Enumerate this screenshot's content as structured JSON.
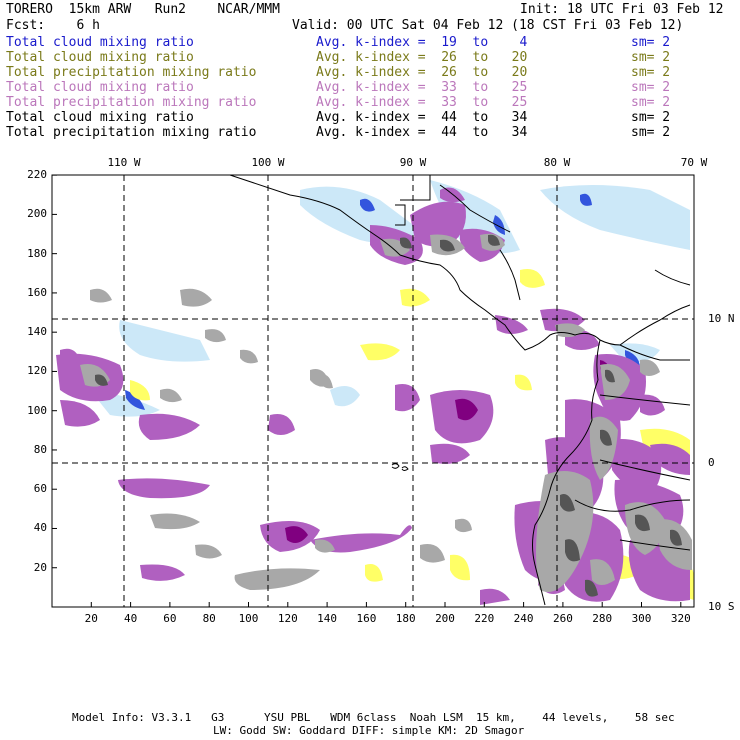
{
  "header": {
    "model_title": "TORERO  15km ARW   Run2    NCAR/MMM",
    "init_label": "Init: 18 UTC Fri 03 Feb 12",
    "fcst_label": "Fcst:    6 h",
    "valid_label": "Valid: 00 UTC Sat 04 Feb 12 (18 CST Fri 03 Feb 12)"
  },
  "legend": [
    {
      "field": "Total cloud mixing ratio",
      "kindex": "Avg. k-index =  19  to    4",
      "sm": "sm= 2",
      "color": "#1a1acc"
    },
    {
      "field": "Total cloud mixing ratio",
      "kindex": "Avg. k-index =  26  to   20",
      "sm": "sm= 2",
      "color": "#7a7a1a"
    },
    {
      "field": "Total precipitation mixing ratio",
      "kindex": "Avg. k-index =  26  to   20",
      "sm": "sm= 2",
      "color": "#7a7a1a"
    },
    {
      "field": "Total cloud mixing ratio",
      "kindex": "Avg. k-index =  33  to   25",
      "sm": "sm= 2",
      "color": "#bb77bb"
    },
    {
      "field": "Total precipitation mixing ratio",
      "kindex": "Avg. k-index =  33  to   25",
      "sm": "sm= 2",
      "color": "#bb77bb"
    },
    {
      "field": "Total cloud mixing ratio",
      "kindex": "Avg. k-index =  44  to   34",
      "sm": "sm= 2",
      "color": "#000000"
    },
    {
      "field": "Total precipitation mixing ratio",
      "kindex": "Avg. k-index =  44  to   34",
      "sm": "sm= 2",
      "color": "#000000"
    }
  ],
  "map": {
    "lon_labels": [
      "110 W",
      "100 W",
      "90 W",
      "80 W",
      "70 W"
    ],
    "lat_labels": [
      "10 N",
      "0",
      "10 S"
    ],
    "y_ticks": [
      "220",
      "200",
      "180",
      "160",
      "140",
      "120",
      "100",
      "80",
      "60",
      "40",
      "20"
    ],
    "x_ticks": [
      "20",
      "40",
      "60",
      "80",
      "100",
      "120",
      "140",
      "160",
      "180",
      "200",
      "220",
      "240",
      "260",
      "280",
      "300",
      "320"
    ],
    "colors": {
      "light_blue": "#cce8f8",
      "blue": "#3355dd",
      "yellow": "#ffff66",
      "purple": "#b060c0",
      "dark_purple": "#800080",
      "gray": "#a8a8a8",
      "dark_gray": "#555555",
      "black": "#000000"
    }
  },
  "footer": {
    "line1": "Model Info: V3.3.1   G3      YSU PBL   WDM 6class  Noah LSM  15 km,    44 levels,    58 sec",
    "line2": "LW: Godd SW: Goddard DIFF: simple KM: 2D Smagor"
  }
}
